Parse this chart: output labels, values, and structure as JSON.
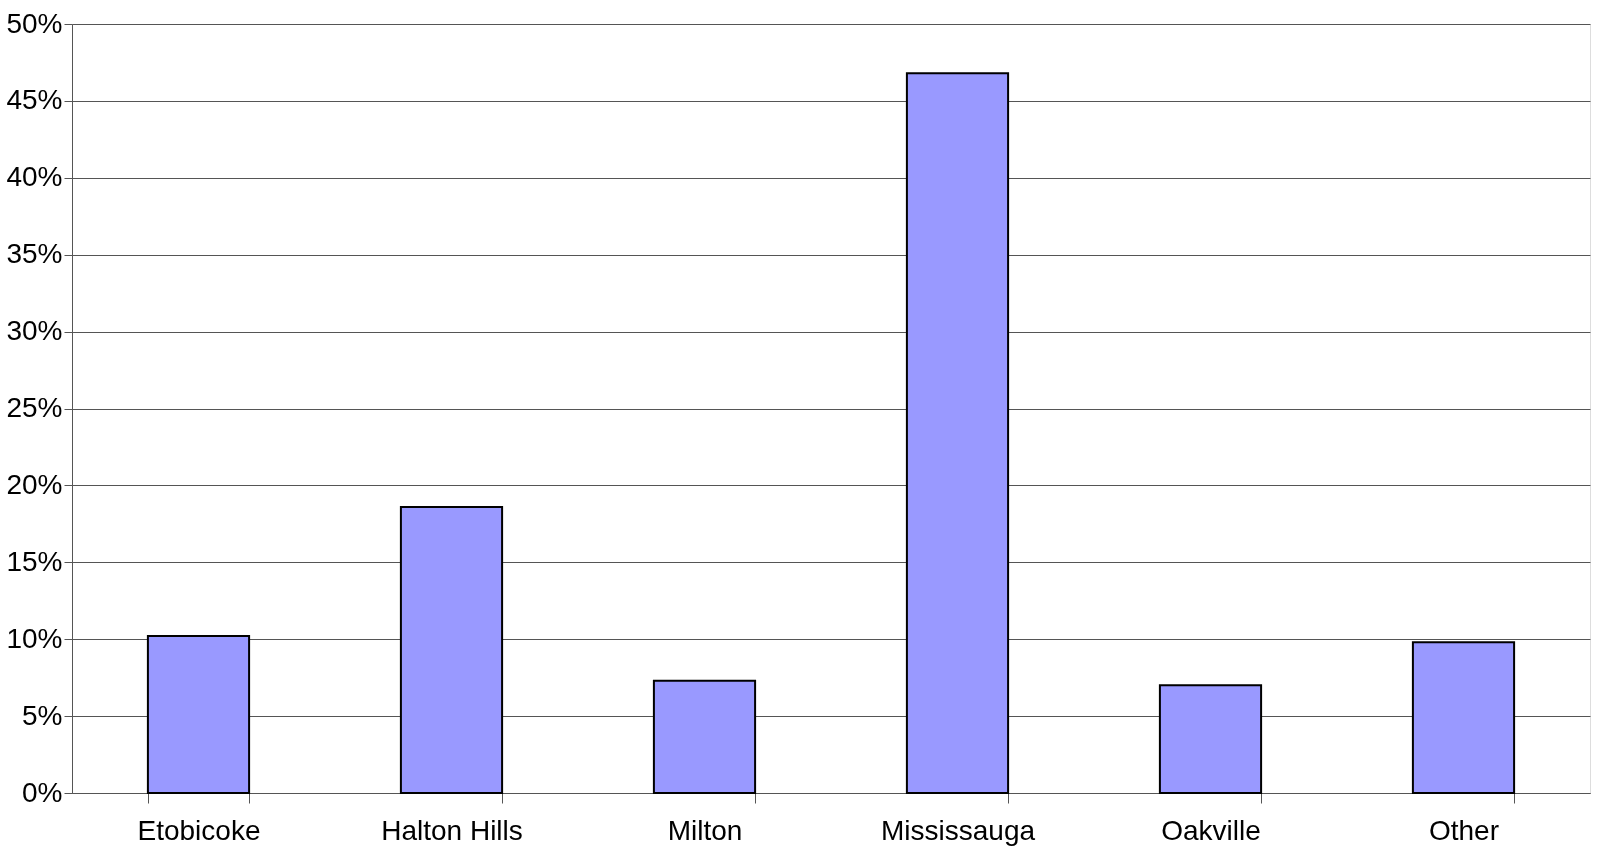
{
  "chart_data": {
    "type": "bar",
    "categories": [
      "Etobicoke",
      "Halton Hills",
      "Milton",
      "Mississauga",
      "Oakville",
      "Other"
    ],
    "values": [
      10.2,
      18.6,
      7.3,
      46.8,
      7.0,
      9.8
    ],
    "color": "#9999ff",
    "ylim": [
      0,
      50
    ],
    "yticks": [
      {
        "value": 0,
        "label": "0%"
      },
      {
        "value": 5,
        "label": "5%"
      },
      {
        "value": 10,
        "label": "10%"
      },
      {
        "value": 15,
        "label": "15%"
      },
      {
        "value": 20,
        "label": "20%"
      },
      {
        "value": 25,
        "label": "25%"
      },
      {
        "value": 30,
        "label": "30%"
      },
      {
        "value": 35,
        "label": "35%"
      },
      {
        "value": 40,
        "label": "40%"
      },
      {
        "value": 45,
        "label": "45%"
      },
      {
        "value": 50,
        "label": "50%"
      }
    ],
    "grid": "y"
  }
}
